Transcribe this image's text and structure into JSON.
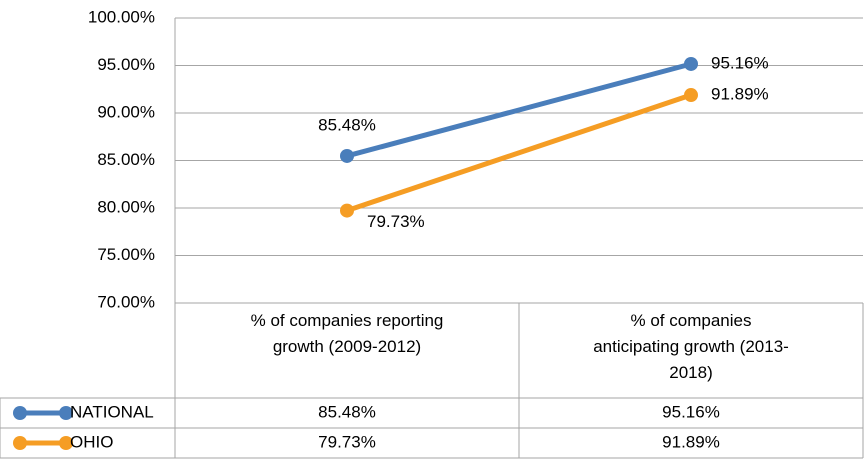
{
  "chart_data": {
    "type": "line",
    "categories": [
      "% of companies reporting growth (2009-2012)",
      "% of companies anticipating growth (2013-2018)"
    ],
    "series": [
      {
        "name": "NATIONAL",
        "color": "#4a7ebb",
        "values": [
          85.48,
          95.16
        ],
        "value_labels": [
          "85.48%",
          "95.16%"
        ]
      },
      {
        "name": "OHIO",
        "color": "#f59d24",
        "values": [
          79.73,
          91.89
        ],
        "value_labels": [
          "79.73%",
          "91.89%"
        ]
      }
    ],
    "ylim": [
      70,
      100
    ],
    "yticks": [
      {
        "value": 70,
        "label": "70.00%"
      },
      {
        "value": 75,
        "label": "75.00%"
      },
      {
        "value": 80,
        "label": "80.00%"
      },
      {
        "value": 85,
        "label": "85.00%"
      },
      {
        "value": 90,
        "label": "90.00%"
      },
      {
        "value": 95,
        "label": "95.00%"
      },
      {
        "value": 100,
        "label": "100.00%"
      }
    ],
    "grid": true
  }
}
